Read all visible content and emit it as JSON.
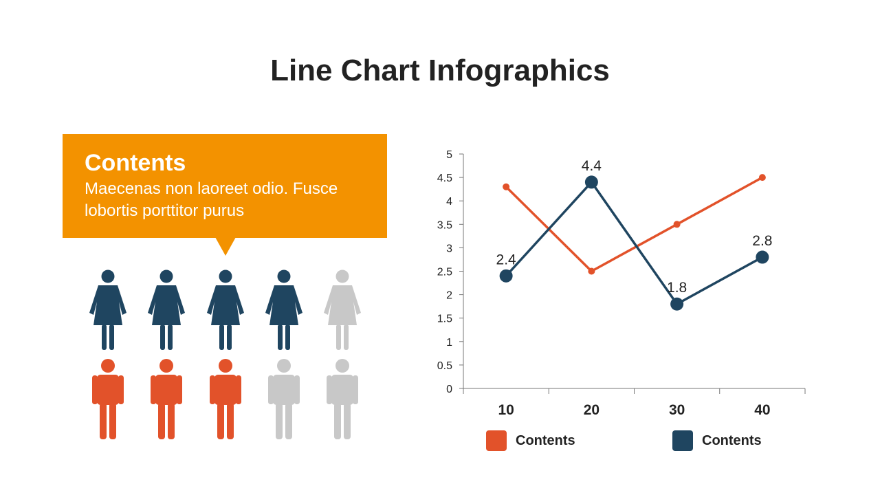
{
  "page": {
    "title": "Line Chart Infographics"
  },
  "callout": {
    "heading": "Contents",
    "body": "Maecenas non laoreet odio. Fusce lobortis porttitor purus"
  },
  "colors": {
    "orange": "#E2522A",
    "navy": "#1F4560",
    "gray": "#C8C8C8",
    "callout": "#F39200"
  },
  "people": {
    "women_total": 5,
    "women_highlighted": 4,
    "men_total": 5,
    "men_highlighted": 3
  },
  "chart_data": {
    "type": "line",
    "x": [
      "10",
      "20",
      "30",
      "40"
    ],
    "ylim": [
      0,
      5
    ],
    "ytick_step": 0.5,
    "yticks": [
      "0",
      "0.5",
      "1",
      "1.5",
      "2",
      "2.5",
      "3",
      "3.5",
      "4",
      "4.5",
      "5"
    ],
    "grid": false,
    "legend_position": "bottom",
    "series": [
      {
        "name": "Contents",
        "color": "#E2522A",
        "values": [
          4.3,
          2.5,
          3.5,
          4.5
        ],
        "labels": [
          "",
          "",
          "",
          ""
        ]
      },
      {
        "name": "Contents",
        "color": "#1F4560",
        "values": [
          2.4,
          4.4,
          1.8,
          2.8
        ],
        "labels": [
          "2.4",
          "4.4",
          "1.8",
          "2.8"
        ]
      }
    ]
  }
}
